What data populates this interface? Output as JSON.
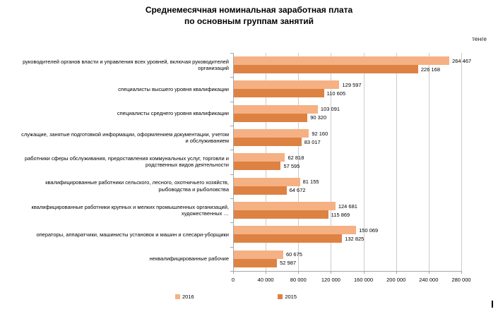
{
  "title": {
    "line1": "Среднемесячная номинальная заработная плата",
    "line2": "по основным группам занятий"
  },
  "unit": "тенге",
  "colors": {
    "series_2016": "#f5b183",
    "series_2015": "#dd8243",
    "gridline": "#cccccc",
    "axis": "#a6a6a6"
  },
  "legend": [
    {
      "label": "2016",
      "color": "#f5b183"
    },
    {
      "label": "2015",
      "color": "#dd8243"
    }
  ],
  "chart_data": {
    "type": "bar",
    "orientation": "horizontal",
    "title": "Среднемесячная номинальная заработная плата по основным группам занятий",
    "unit": "тенге",
    "grid": "vertical",
    "legend_position": "bottom",
    "xlim": [
      0,
      280000
    ],
    "x_ticks": [
      0,
      40000,
      80000,
      120000,
      160000,
      200000,
      240000,
      280000
    ],
    "x_tick_labels": [
      "0",
      "40 000",
      "80 000",
      "120 000",
      "160 000",
      "200 000",
      "240 000",
      "280 000"
    ],
    "categories": [
      "руководителей органов власти и управления всех уровней, включая руководителей организаций",
      "специалисты высшего уровня квалификации",
      "специалисты среднего уровня квалификации",
      "служащие, занятые подготовкой информации, оформлением документации, учетом и обслуживанием",
      "работники сферы обслуживания, предоставления коммунальных услуг, торговли и родственных видов деятельности",
      "квалифицированные работники сельского, лесного, охотничьего хозяйств, рыбоводства и рыболовства",
      "квалифицированные работники крупных и мелких промышленных организаций, художественных …",
      "операторы, аппаратчики, машинисты установок и машин и слесари-уборщики",
      "неквалифицированные рабочие"
    ],
    "series": [
      {
        "name": "2016",
        "color": "#f5b183",
        "values": [
          264467,
          129597,
          103091,
          92160,
          62818,
          81155,
          124681,
          150069,
          60675
        ]
      },
      {
        "name": "2015",
        "color": "#dd8243",
        "values": [
          226168,
          110605,
          90320,
          83017,
          57595,
          64672,
          115869,
          132825,
          52987
        ]
      }
    ]
  }
}
